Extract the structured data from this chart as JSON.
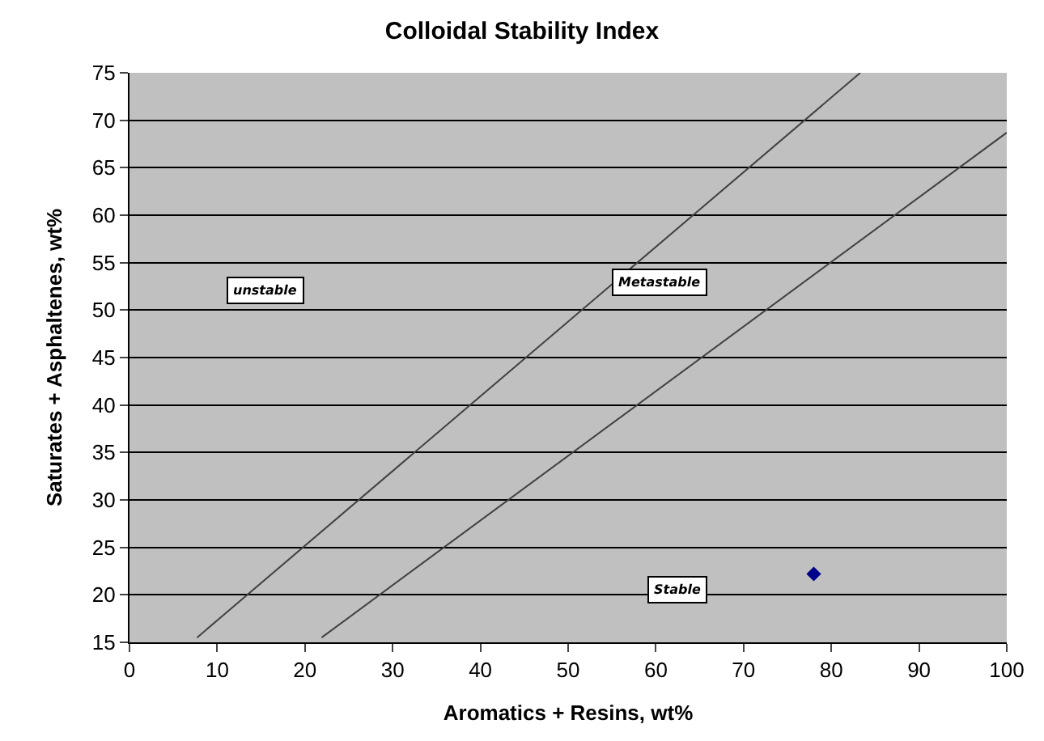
{
  "chart_data": {
    "type": "scatter",
    "title": "Colloidal Stability Index",
    "xlabel": "Aromatics + Resins, wt%",
    "ylabel": "Saturates + Asphaltenes, wt%",
    "series": [
      {
        "type": "line",
        "color": "#404040",
        "marker": "none",
        "x": [
          7.7,
          83.3
        ],
        "values": [
          15.5,
          75
        ]
      },
      {
        "type": "line",
        "color": "#404040",
        "marker": "none",
        "x": [
          21.9,
          100
        ],
        "values": [
          15.5,
          68.7
        ]
      },
      {
        "color": "#00008b",
        "marker": "diamond",
        "x": [
          78
        ],
        "values": [
          22.2
        ]
      }
    ],
    "annotations": [
      "unstable",
      "Metastable",
      "Stable"
    ],
    "xlim": [
      0,
      100
    ],
    "xticks": [
      0,
      10,
      20,
      30,
      40,
      50,
      60,
      70,
      80,
      90,
      100
    ],
    "ylim": [
      15,
      75
    ],
    "yticks": [
      15,
      20,
      25,
      30,
      35,
      40,
      45,
      50,
      55,
      60,
      65,
      70,
      75
    ],
    "grid": "y",
    "legend": false
  }
}
